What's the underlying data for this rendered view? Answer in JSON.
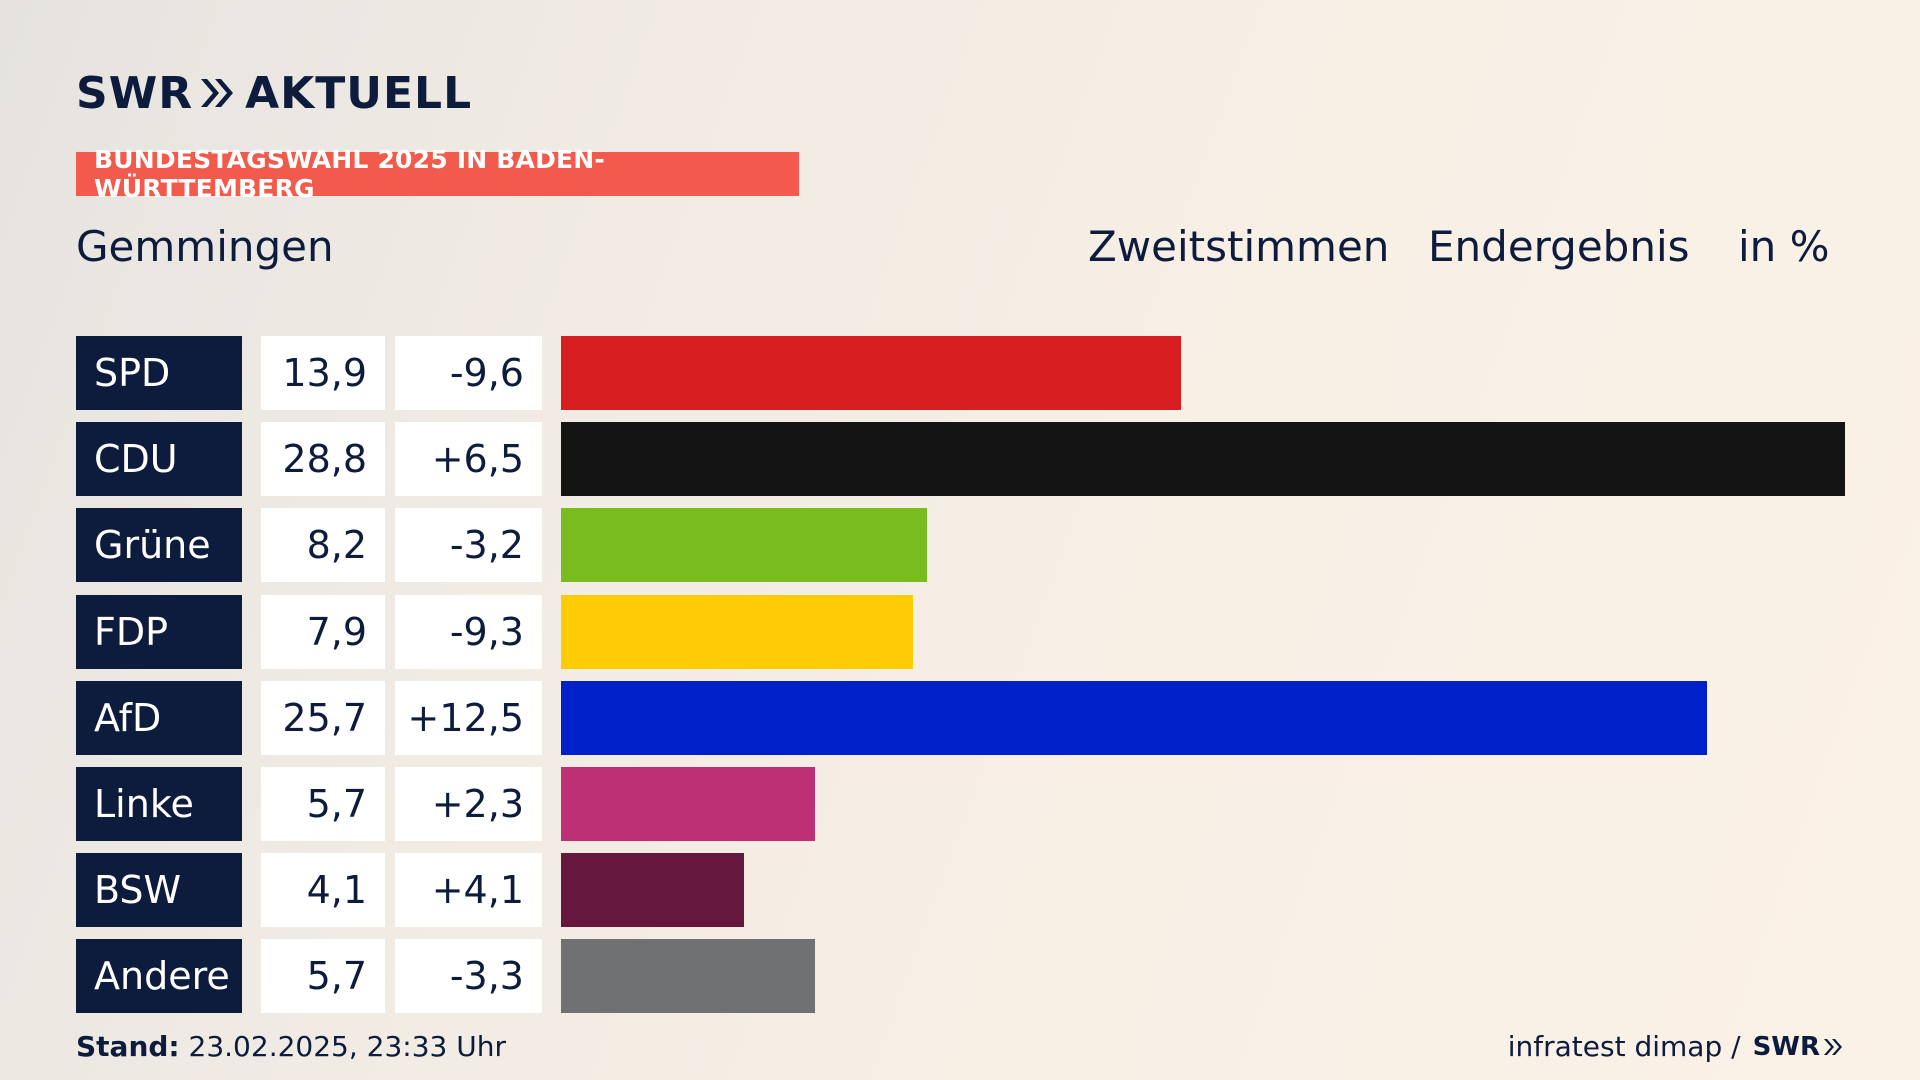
{
  "brand": {
    "logo_left": "SWR",
    "logo_right": "AKTUELL"
  },
  "banner": "BUNDESTAGSWAHL 2025 IN BADEN-WÜRTTEMBERG",
  "header": {
    "place": "Gemmingen",
    "vote_type": "Zweitstimmen",
    "status": "Endergebnis",
    "unit": "in %"
  },
  "chart_data": {
    "type": "bar",
    "orientation": "horizontal",
    "categories": [
      "SPD",
      "CDU",
      "Grüne",
      "FDP",
      "AfD",
      "Linke",
      "BSW",
      "Andere"
    ],
    "values": [
      13.9,
      28.8,
      8.2,
      7.9,
      25.7,
      5.7,
      4.1,
      5.7
    ],
    "value_labels": [
      "13,9",
      "28,8",
      "8,2",
      "7,9",
      "25,7",
      "5,7",
      "4,1",
      "5,7"
    ],
    "diff_labels": [
      "-9,6",
      "+6,5",
      "-3,2",
      "-9,3",
      "+12,5",
      "+2,3",
      "+4,1",
      "-3,3"
    ],
    "colors": [
      "#d71e21",
      "#141414",
      "#78bc1e",
      "#ffcc05",
      "#0020c9",
      "#be3075",
      "#66173d",
      "#707173"
    ],
    "xlim": [
      0,
      28.8
    ],
    "grid": false
  },
  "footer": {
    "stand_label": "Stand:",
    "stand_value": "23.02.2025, 23:33 Uhr",
    "source": "infratest dimap /",
    "source_logo": "SWR"
  }
}
